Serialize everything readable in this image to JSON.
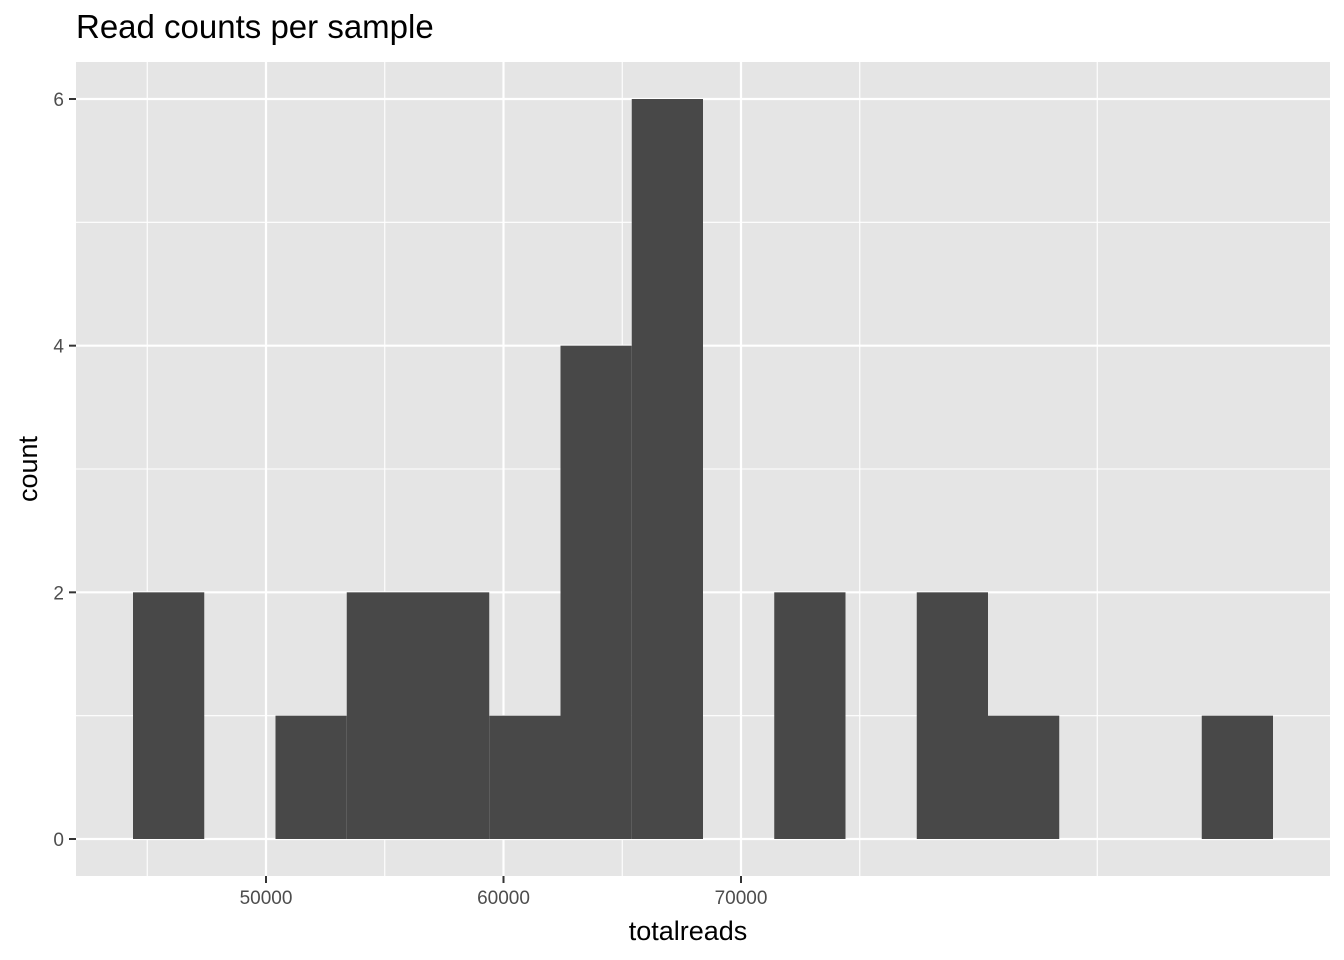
{
  "chart_data": {
    "type": "bar",
    "title": "Read counts per sample",
    "xlabel": "totalreads",
    "ylabel": "count",
    "bin_width": 3000,
    "bins": [
      {
        "x0": 44400,
        "x1": 47400,
        "count": 2
      },
      {
        "x0": 47400,
        "x1": 50400,
        "count": 0
      },
      {
        "x0": 50400,
        "x1": 53400,
        "count": 1
      },
      {
        "x0": 53400,
        "x1": 56400,
        "count": 2
      },
      {
        "x0": 56400,
        "x1": 59400,
        "count": 2
      },
      {
        "x0": 59400,
        "x1": 62400,
        "count": 1
      },
      {
        "x0": 62400,
        "x1": 65400,
        "count": 4
      },
      {
        "x0": 65400,
        "x1": 68400,
        "count": 6
      },
      {
        "x0": 68400,
        "x1": 71400,
        "count": 0
      },
      {
        "x0": 71400,
        "x1": 74400,
        "count": 2
      },
      {
        "x0": 74400,
        "x1": 77400,
        "count": 0
      },
      {
        "x0": 77400,
        "x1": 80400,
        "count": 2
      },
      {
        "x0": 80400,
        "x1": 83400,
        "count": 1
      },
      {
        "x0": 83400,
        "x1": 86400,
        "count": 0
      },
      {
        "x0": 86400,
        "x1": 89400,
        "count": 0
      },
      {
        "x0": 89400,
        "x1": 92400,
        "count": 1
      }
    ],
    "x_ticks": [
      50000,
      60000,
      70000
    ],
    "y_ticks": [
      0,
      2,
      4,
      6
    ],
    "xlim": [
      42000,
      94800
    ],
    "ylim": [
      -0.3,
      6.3
    ],
    "grid": true,
    "colors": {
      "panel": "#e5e5e5",
      "grid": "#ffffff",
      "bar": "#484848",
      "tick_text": "#4d4d4d"
    }
  }
}
